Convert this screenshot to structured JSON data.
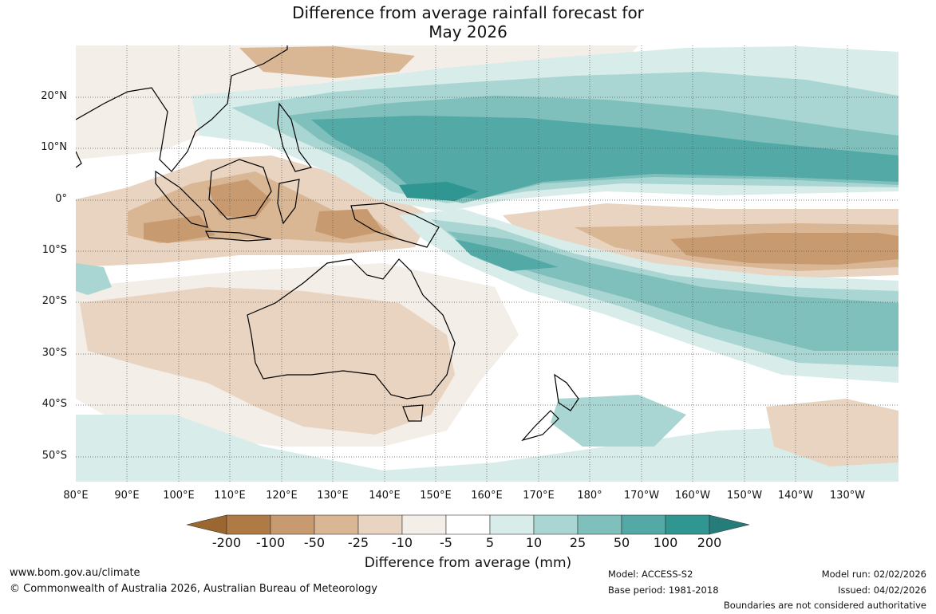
{
  "title_line1": "Difference from average rainfall forecast for",
  "title_line2": "May 2026",
  "lat_labels": [
    "20°N",
    "10°N",
    "0°",
    "10°S",
    "20°S",
    "30°S",
    "40°S",
    "50°S"
  ],
  "lon_labels": [
    "80°E",
    "90°E",
    "100°E",
    "110°E",
    "120°E",
    "130°E",
    "140°E",
    "150°E",
    "160°E",
    "170°E",
    "180°",
    "170°W",
    "160°W",
    "150°W",
    "140°W",
    "130°W"
  ],
  "colorbar": {
    "ticks": [
      "-200",
      "-100",
      "-50",
      "-25",
      "-10",
      "-5",
      "5",
      "10",
      "25",
      "50",
      "100",
      "200"
    ],
    "colors": [
      "#9c6630",
      "#b07a44",
      "#c79a70",
      "#d9b795",
      "#e8d4c0",
      "#f4eee8",
      "#ffffff",
      "#d8ecea",
      "#a9d6d2",
      "#7fc0bc",
      "#53a9a6",
      "#2f9691",
      "#267c78"
    ],
    "title": "Difference from average (mm)"
  },
  "footer": {
    "website": "www.bom.gov.au/climate",
    "copyright": "© Commonwealth of Australia 2026, Australian Bureau of Meteorology",
    "model": "Model: ACCESS-S2",
    "base_period": "Base period: 1981-2018",
    "model_run": "Model run: 02/02/2026",
    "issued": "Issued: 04/02/2026",
    "boundaries": "Boundaries are not considered authoritative"
  }
}
